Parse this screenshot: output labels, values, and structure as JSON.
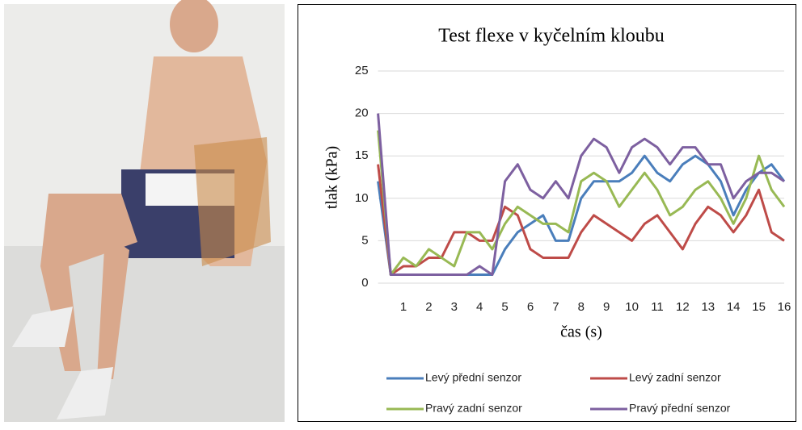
{
  "chart_data": {
    "type": "line",
    "title": "Test flexe v kyčelním kloubu",
    "x_label": "čas (s)",
    "y_label": "tlak (kPa)",
    "x": [
      0,
      0.5,
      1,
      1.5,
      2,
      2.5,
      3,
      3.5,
      4,
      4.5,
      5,
      5.5,
      6,
      6.5,
      7,
      7.5,
      8,
      8.5,
      9,
      9.5,
      10,
      10.5,
      11,
      11.5,
      12,
      12.5,
      13,
      13.5,
      14,
      14.5,
      15,
      15.5,
      16
    ],
    "xlim": [
      0,
      16
    ],
    "xticks": [
      1,
      2,
      3,
      4,
      5,
      6,
      7,
      8,
      9,
      10,
      11,
      12,
      13,
      14,
      15,
      16
    ],
    "ylim": [
      0,
      25
    ],
    "yticks": [
      0,
      5,
      10,
      15,
      20,
      25
    ],
    "grid": true,
    "legend": "bottom",
    "series": [
      {
        "name": "Levý přední senzor",
        "color": "#4a7ebb",
        "values": [
          12,
          1,
          1,
          1,
          1,
          1,
          1,
          1,
          1,
          1,
          4,
          6,
          7,
          8,
          5,
          5,
          10,
          12,
          12,
          12,
          13,
          15,
          13,
          12,
          14,
          15,
          14,
          12,
          8,
          11,
          13,
          14,
          12
        ]
      },
      {
        "name": "Levý zadní senzor",
        "color": "#be4b48",
        "values": [
          14,
          1,
          2,
          2,
          3,
          3,
          6,
          6,
          5,
          5,
          9,
          8,
          4,
          3,
          3,
          3,
          6,
          8,
          7,
          6,
          5,
          7,
          8,
          6,
          4,
          7,
          9,
          8,
          6,
          8,
          11,
          6,
          5
        ]
      },
      {
        "name": "Pravý zadní senzor",
        "color": "#98b954",
        "values": [
          18,
          1,
          3,
          2,
          4,
          3,
          2,
          6,
          6,
          4,
          7,
          9,
          8,
          7,
          7,
          6,
          12,
          13,
          12,
          9,
          11,
          13,
          11,
          8,
          9,
          11,
          12,
          10,
          7,
          10,
          15,
          11,
          9
        ]
      },
      {
        "name": "Pravý přední senzor",
        "color": "#7d60a0",
        "values": [
          20,
          1,
          1,
          1,
          1,
          1,
          1,
          1,
          2,
          1,
          12,
          14,
          11,
          10,
          12,
          10,
          15,
          17,
          16,
          13,
          16,
          17,
          16,
          14,
          16,
          16,
          14,
          14,
          10,
          12,
          13,
          13,
          12
        ]
      }
    ]
  }
}
